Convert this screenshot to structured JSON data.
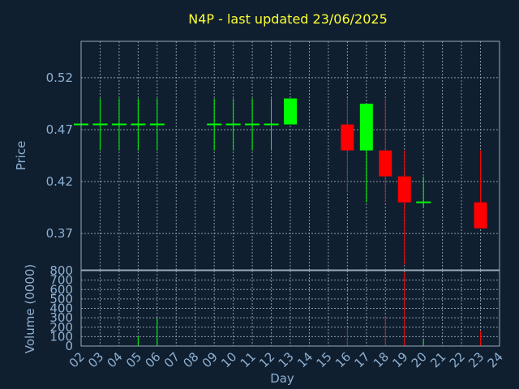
{
  "colors": {
    "background": "#0f1f30",
    "frame": "#9aa8b8",
    "grid": "#8a98a8",
    "title": "#ffff33",
    "text": "#8fb0d0",
    "up": "#00ff00",
    "down": "#ff0000",
    "neutral": "#00ff00"
  },
  "chart_data": {
    "type": "candlestick",
    "title": "N4P - last updated 23/06/2025",
    "xlabel": "Day",
    "ylabel": "Price",
    "volume_label": "Volume (0000)",
    "grid": true,
    "price_ylim": [
      0.335,
      0.555
    ],
    "price_yticks": [
      0.37,
      0.42,
      0.47,
      0.52
    ],
    "price_ytick_labels": [
      "0.37",
      "0.42",
      "0.47",
      "0.52"
    ],
    "volume_ylim": [
      0,
      800
    ],
    "volume_yticks": [
      0,
      100,
      200,
      300,
      400,
      500,
      600,
      700,
      800
    ],
    "volume_ytick_labels": [
      "0",
      "100",
      "200",
      "300",
      "400",
      "500",
      "600",
      "700",
      "800"
    ],
    "x_ticks": [
      2,
      3,
      4,
      5,
      6,
      7,
      8,
      9,
      10,
      11,
      12,
      13,
      14,
      15,
      16,
      17,
      18,
      19,
      20,
      21,
      22,
      23,
      24
    ],
    "x_tick_labels": [
      "02",
      "03",
      "04",
      "05",
      "06",
      "07",
      "08",
      "09",
      "10",
      "11",
      "12",
      "13",
      "14",
      "15",
      "16",
      "17",
      "18",
      "19",
      "20",
      "21",
      "22",
      "23",
      "24"
    ],
    "candles": [
      {
        "day": 2,
        "open": 0.475,
        "high": 0.475,
        "low": 0.475,
        "close": 0.475,
        "volume": 0
      },
      {
        "day": 3,
        "open": 0.475,
        "high": 0.5,
        "low": 0.45,
        "close": 0.475,
        "volume": 5
      },
      {
        "day": 4,
        "open": 0.475,
        "high": 0.5,
        "low": 0.45,
        "close": 0.475,
        "volume": 5
      },
      {
        "day": 5,
        "open": 0.475,
        "high": 0.5,
        "low": 0.45,
        "close": 0.475,
        "volume": 100
      },
      {
        "day": 6,
        "open": 0.475,
        "high": 0.5,
        "low": 0.45,
        "close": 0.475,
        "volume": 300
      },
      {
        "day": 9,
        "open": 0.475,
        "high": 0.5,
        "low": 0.45,
        "close": 0.475,
        "volume": 5
      },
      {
        "day": 10,
        "open": 0.475,
        "high": 0.5,
        "low": 0.45,
        "close": 0.475,
        "volume": 5
      },
      {
        "day": 11,
        "open": 0.475,
        "high": 0.5,
        "low": 0.45,
        "close": 0.475,
        "volume": 5
      },
      {
        "day": 12,
        "open": 0.475,
        "high": 0.5,
        "low": 0.45,
        "close": 0.475,
        "volume": 5
      },
      {
        "day": 13,
        "open": 0.475,
        "high": 0.5,
        "low": 0.475,
        "close": 0.5,
        "volume": 5
      },
      {
        "day": 16,
        "open": 0.475,
        "high": 0.5,
        "low": 0.41,
        "close": 0.45,
        "volume": 200
      },
      {
        "day": 17,
        "open": 0.45,
        "high": 0.495,
        "low": 0.4,
        "close": 0.495,
        "volume": 5
      },
      {
        "day": 18,
        "open": 0.45,
        "high": 0.5,
        "low": 0.4,
        "close": 0.425,
        "volume": 320
      },
      {
        "day": 19,
        "open": 0.425,
        "high": 0.45,
        "low": 0.34,
        "close": 0.4,
        "volume": 780
      },
      {
        "day": 20,
        "open": 0.4,
        "high": 0.425,
        "low": 0.395,
        "close": 0.4,
        "volume": 80
      },
      {
        "day": 23,
        "open": 0.4,
        "high": 0.45,
        "low": 0.375,
        "close": 0.375,
        "volume": 160
      }
    ]
  }
}
